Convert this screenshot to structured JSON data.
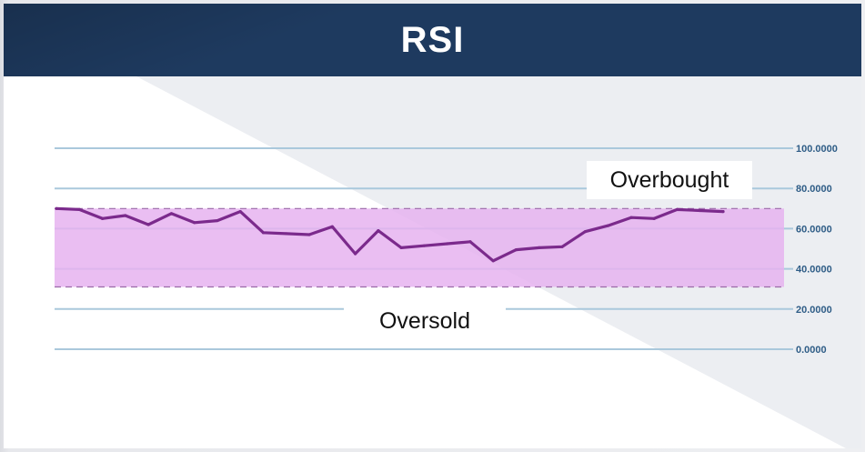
{
  "header": {
    "title": "RSI"
  },
  "colors": {
    "header_bg": "#1e3a5f",
    "line": "#7b2a8c",
    "band_fill": "#e6b3f0",
    "gridline": "#aac8dc",
    "tick_text": "#2e5c86"
  },
  "chart_data": {
    "type": "line",
    "title": "RSI",
    "xlabel": "",
    "ylabel": "",
    "ylim": [
      0,
      100
    ],
    "yticks": [
      100,
      80,
      60,
      40,
      20,
      0
    ],
    "ytick_labels": [
      "100.0000",
      "80.0000",
      "60.0000",
      "40.0000",
      "20.0000",
      "0.0000"
    ],
    "grid": true,
    "series": [
      {
        "values": [
          70,
          69.5,
          65,
          66.5,
          62,
          67.5,
          63,
          64,
          68.5,
          58,
          57.5,
          57,
          61,
          47.5,
          59,
          50.5,
          51.5,
          52.5,
          53.5,
          44,
          49.5,
          50.5,
          51,
          58.5,
          61.5,
          65.5,
          65,
          69.5,
          69,
          68.5
        ]
      }
    ],
    "bands": [
      {
        "from": 31,
        "to": 70
      }
    ],
    "annotations": [
      {
        "text": "Overbought"
      },
      {
        "text": "Oversold"
      }
    ]
  }
}
